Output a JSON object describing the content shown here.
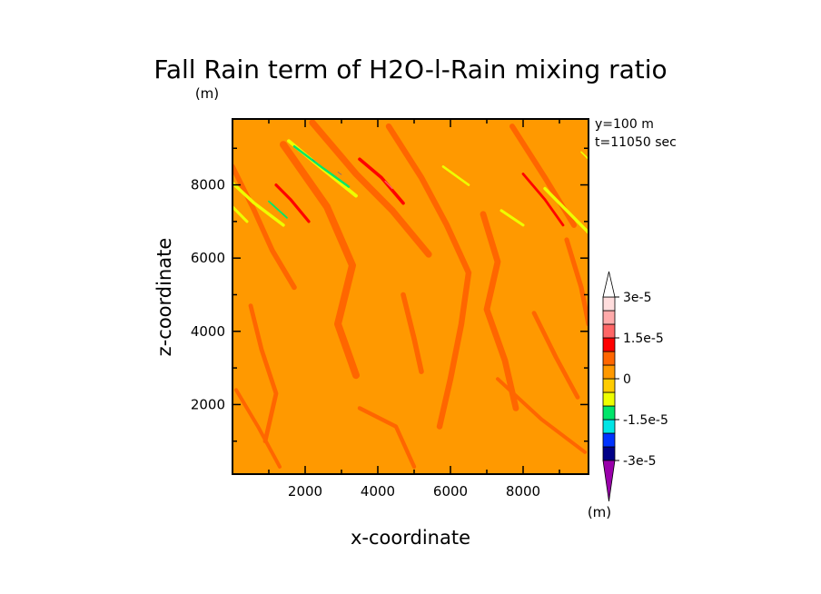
{
  "chart_data": {
    "type": "heatmap",
    "title": "Fall Rain term of H2O-l-Rain mixing ratio",
    "title_unit": "(m)",
    "info_lines": [
      "y=100 m",
      "t=11050 sec"
    ],
    "xlabel": "x-coordinate",
    "ylabel": "z-coordinate",
    "xlim": [
      0,
      9800
    ],
    "ylim": [
      100,
      9800
    ],
    "x_ticks": [
      2000,
      4000,
      6000,
      8000
    ],
    "y_ticks": [
      2000,
      4000,
      6000,
      8000
    ],
    "colorbar": {
      "levels": [
        -3e-05,
        -2.5e-05,
        -2e-05,
        -1.5e-05,
        -1e-05,
        -5e-06,
        0,
        5e-06,
        1e-05,
        1.5e-05,
        2e-05,
        2.5e-05,
        3e-05
      ],
      "colors": [
        "#9900aa",
        "#000088",
        "#0033ff",
        "#00e5e5",
        "#00e56a",
        "#eeff00",
        "#ffcc00",
        "#ff9900",
        "#ff6600",
        "#ff0000",
        "#ff6666",
        "#ffaaaa",
        "#ffdddd",
        "#ffffff"
      ],
      "labels": [
        "3e-5",
        "1.5e-5",
        "0",
        "-1.5e-5",
        "-3e-5"
      ],
      "unit": "(m)"
    },
    "background_value": 0,
    "bands": [
      {
        "value": 7.5e-06,
        "width": 180,
        "points": [
          [
            2200,
            9700
          ],
          [
            3400,
            8300
          ],
          [
            4400,
            7300
          ],
          [
            5400,
            6100
          ]
        ]
      },
      {
        "value": 7.5e-06,
        "width": 200,
        "points": [
          [
            1400,
            9100
          ],
          [
            2600,
            7400
          ],
          [
            3300,
            5800
          ],
          [
            2900,
            4200
          ],
          [
            3400,
            2800
          ]
        ]
      },
      {
        "value": 7.5e-06,
        "width": 160,
        "points": [
          [
            4300,
            9600
          ],
          [
            5200,
            8200
          ],
          [
            5900,
            6900
          ],
          [
            6500,
            5600
          ],
          [
            6300,
            4200
          ],
          [
            6000,
            2700
          ],
          [
            5700,
            1400
          ]
        ]
      },
      {
        "value": 7.5e-06,
        "width": 170,
        "points": [
          [
            6900,
            7200
          ],
          [
            7300,
            5900
          ],
          [
            7000,
            4600
          ],
          [
            7500,
            3200
          ],
          [
            7800,
            1900
          ]
        ]
      },
      {
        "value": 7.5e-06,
        "width": 140,
        "points": [
          [
            0,
            8500
          ],
          [
            600,
            7300
          ],
          [
            1100,
            6200
          ],
          [
            1700,
            5200
          ]
        ]
      },
      {
        "value": 7.5e-06,
        "width": 150,
        "points": [
          [
            7700,
            9600
          ],
          [
            8600,
            8200
          ],
          [
            9400,
            6900
          ]
        ]
      },
      {
        "value": 7.5e-06,
        "width": 140,
        "points": [
          [
            4700,
            5000
          ],
          [
            5000,
            3800
          ],
          [
            5200,
            2900
          ]
        ]
      },
      {
        "value": 7.5e-06,
        "width": 120,
        "points": [
          [
            500,
            4700
          ],
          [
            800,
            3500
          ],
          [
            1200,
            2300
          ],
          [
            900,
            1000
          ]
        ]
      },
      {
        "value": 7.5e-06,
        "width": 120,
        "points": [
          [
            8300,
            4500
          ],
          [
            8900,
            3300
          ],
          [
            9500,
            2200
          ]
        ]
      },
      {
        "value": 7.5e-06,
        "width": 130,
        "points": [
          [
            9200,
            6500
          ],
          [
            9600,
            5200
          ],
          [
            9800,
            4200
          ]
        ]
      },
      {
        "value": 7.5e-06,
        "width": 110,
        "points": [
          [
            3500,
            1900
          ],
          [
            4500,
            1400
          ],
          [
            5000,
            300
          ]
        ]
      },
      {
        "value": 7.5e-06,
        "width": 100,
        "points": [
          [
            100,
            2400
          ],
          [
            700,
            1400
          ],
          [
            1300,
            300
          ]
        ]
      },
      {
        "value": 7.5e-06,
        "width": 100,
        "points": [
          [
            7300,
            2700
          ],
          [
            8500,
            1600
          ],
          [
            9700,
            700
          ]
        ]
      },
      {
        "value": 1.25e-05,
        "width": 80,
        "points": [
          [
            1200,
            8000
          ],
          [
            1600,
            7600
          ],
          [
            2100,
            7000
          ]
        ]
      },
      {
        "value": 1.25e-05,
        "width": 90,
        "points": [
          [
            3500,
            8700
          ],
          [
            4100,
            8200
          ],
          [
            4700,
            7500
          ]
        ]
      },
      {
        "value": 1.25e-05,
        "width": 70,
        "points": [
          [
            8000,
            8300
          ],
          [
            8600,
            7600
          ],
          [
            9100,
            6900
          ]
        ]
      },
      {
        "value": 1.75e-05,
        "width": 30,
        "points": [
          [
            4200,
            8100
          ],
          [
            4400,
            7900
          ]
        ]
      },
      {
        "value": -7.5e-06,
        "width": 95,
        "points": [
          [
            1550,
            9200
          ],
          [
            2400,
            8500
          ],
          [
            3400,
            7700
          ]
        ]
      },
      {
        "value": -7.5e-06,
        "width": 85,
        "points": [
          [
            0,
            8050
          ],
          [
            600,
            7500
          ],
          [
            1400,
            6900
          ]
        ]
      },
      {
        "value": -7.5e-06,
        "width": 75,
        "points": [
          [
            0,
            7400
          ],
          [
            400,
            7000
          ]
        ]
      },
      {
        "value": -7.5e-06,
        "width": 65,
        "points": [
          [
            5800,
            8500
          ],
          [
            6500,
            8000
          ]
        ]
      },
      {
        "value": -7.5e-06,
        "width": 75,
        "points": [
          [
            7400,
            7300
          ],
          [
            8000,
            6900
          ]
        ]
      },
      {
        "value": -7.5e-06,
        "width": 85,
        "points": [
          [
            8600,
            7900
          ],
          [
            9200,
            7300
          ],
          [
            9800,
            6700
          ]
        ]
      },
      {
        "value": -7.5e-06,
        "width": 40,
        "points": [
          [
            9600,
            8900
          ],
          [
            9800,
            8700
          ]
        ]
      },
      {
        "value": -1.25e-05,
        "width": 60,
        "points": [
          [
            1700,
            9050
          ],
          [
            2500,
            8450
          ],
          [
            3200,
            7950
          ]
        ]
      },
      {
        "value": -1.25e-05,
        "width": 45,
        "points": [
          [
            1000,
            7550
          ],
          [
            1500,
            7100
          ]
        ]
      },
      {
        "value": -2.25e-05,
        "width": 12,
        "points": [
          [
            2900,
            8350
          ],
          [
            3000,
            8280
          ]
        ]
      },
      {
        "value": -2.25e-05,
        "width": 10,
        "points": [
          [
            2200,
            8700
          ],
          [
            2280,
            8640
          ]
        ]
      }
    ]
  }
}
